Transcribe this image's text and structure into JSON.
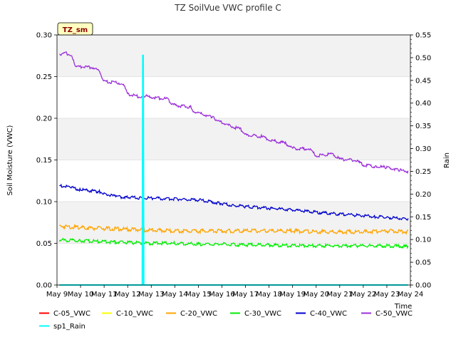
{
  "chart_data": {
    "type": "line",
    "title": "TZ SoilVue VWC profile C",
    "badge": "TZ_sm",
    "xlabel": "Time",
    "ylabel": "Soil Moisture (VWC)",
    "y2label": "Rain",
    "xlim": [
      9,
      24
    ],
    "ylim": [
      0,
      0.3
    ],
    "y2lim": [
      0,
      0.55
    ],
    "x_ticks": [
      9,
      10,
      11,
      12,
      13,
      14,
      15,
      16,
      17,
      18,
      19,
      20,
      21,
      22,
      23,
      24
    ],
    "x_tick_labels": [
      "May 9",
      "May 10",
      "May 11",
      "May 12",
      "May 13",
      "May 14",
      "May 15",
      "May 16",
      "May 17",
      "May 18",
      "May 19",
      "May 20",
      "May 21",
      "May 22",
      "May 23",
      "May 24"
    ],
    "y_ticks": [
      0.0,
      0.05,
      0.1,
      0.15,
      0.2,
      0.25,
      0.3
    ],
    "y_tick_labels": [
      "0.00",
      "0.05",
      "0.10",
      "0.15",
      "0.20",
      "0.25",
      "0.30"
    ],
    "y2_ticks": [
      0.0,
      0.05,
      0.1,
      0.15,
      0.2,
      0.25,
      0.3,
      0.35,
      0.4,
      0.45,
      0.5,
      0.55
    ],
    "y2_tick_labels": [
      "0.00",
      "0.05",
      "0.10",
      "0.15",
      "0.20",
      "0.25",
      "0.30",
      "0.35",
      "0.40",
      "0.45",
      "0.50",
      "0.55"
    ],
    "background_bands": true,
    "legend_position": "bottom",
    "series": [
      {
        "name": "C-05_VWC",
        "color": "#ff0000",
        "axis": "left",
        "x": [
          9.1,
          23.9
        ],
        "y": [
          0.0,
          0.0
        ]
      },
      {
        "name": "C-10_VWC",
        "color": "#ffff00",
        "axis": "left",
        "x": [
          9.1,
          23.9
        ],
        "y": [
          0.0,
          0.0
        ]
      },
      {
        "name": "C-20_VWC",
        "color": "#ffa500",
        "axis": "left",
        "x": [
          9.1,
          10.0,
          11.0,
          12.0,
          13.0,
          14.0,
          15.0,
          16.0,
          17.0,
          18.0,
          19.0,
          20.0,
          21.0,
          22.0,
          23.0,
          23.9
        ],
        "y": [
          0.072,
          0.07,
          0.069,
          0.068,
          0.067,
          0.066,
          0.066,
          0.066,
          0.066,
          0.066,
          0.066,
          0.065,
          0.065,
          0.065,
          0.066,
          0.065
        ]
      },
      {
        "name": "C-30_VWC",
        "color": "#00ee00",
        "axis": "left",
        "x": [
          9.1,
          10.0,
          11.0,
          12.0,
          13.0,
          14.0,
          15.0,
          16.0,
          17.0,
          18.0,
          19.0,
          20.0,
          21.0,
          22.0,
          23.0,
          23.9
        ],
        "y": [
          0.055,
          0.054,
          0.053,
          0.052,
          0.051,
          0.051,
          0.05,
          0.05,
          0.049,
          0.049,
          0.048,
          0.048,
          0.048,
          0.048,
          0.048,
          0.047
        ]
      },
      {
        "name": "C-40_VWC",
        "color": "#0000cc",
        "axis": "left",
        "x": [
          9.1,
          9.6,
          10.0,
          10.8,
          11.0,
          11.5,
          12.0,
          13.0,
          14.0,
          15.0,
          15.9,
          16.5,
          17.0,
          18.0,
          19.0,
          20.0,
          21.0,
          22.0,
          22.5,
          23.0,
          23.9
        ],
        "y": [
          0.12,
          0.118,
          0.115,
          0.113,
          0.11,
          0.107,
          0.106,
          0.105,
          0.104,
          0.103,
          0.099,
          0.096,
          0.095,
          0.093,
          0.091,
          0.088,
          0.086,
          0.084,
          0.083,
          0.082,
          0.08
        ]
      },
      {
        "name": "C-50_VWC",
        "color": "#9b30d9",
        "axis": "left",
        "x": [
          9.1,
          9.4,
          9.6,
          9.8,
          10.5,
          10.8,
          11.0,
          11.7,
          11.9,
          12.0,
          12.6,
          12.7,
          13.0,
          13.7,
          13.9,
          14.7,
          14.8,
          15.6,
          15.8,
          16.5,
          16.8,
          17.0,
          17.7,
          18.0,
          18.7,
          19.0,
          19.7,
          20.0,
          20.7,
          21.0,
          21.7,
          22.0,
          22.5,
          23.0,
          23.5,
          23.9
        ],
        "y": [
          0.278,
          0.279,
          0.276,
          0.263,
          0.262,
          0.257,
          0.245,
          0.243,
          0.238,
          0.23,
          0.226,
          0.228,
          0.226,
          0.224,
          0.217,
          0.214,
          0.209,
          0.202,
          0.198,
          0.19,
          0.188,
          0.181,
          0.179,
          0.175,
          0.171,
          0.165,
          0.164,
          0.156,
          0.158,
          0.152,
          0.15,
          0.145,
          0.143,
          0.142,
          0.139,
          0.137
        ]
      },
      {
        "name": "sp1_Rain",
        "color": "#00ffff",
        "axis": "right",
        "x": [
          9.1,
          12.62,
          12.64,
          12.66,
          12.68,
          23.9
        ],
        "y": [
          0.0,
          0.0,
          0.505,
          0.505,
          0.0,
          0.0
        ]
      }
    ]
  }
}
